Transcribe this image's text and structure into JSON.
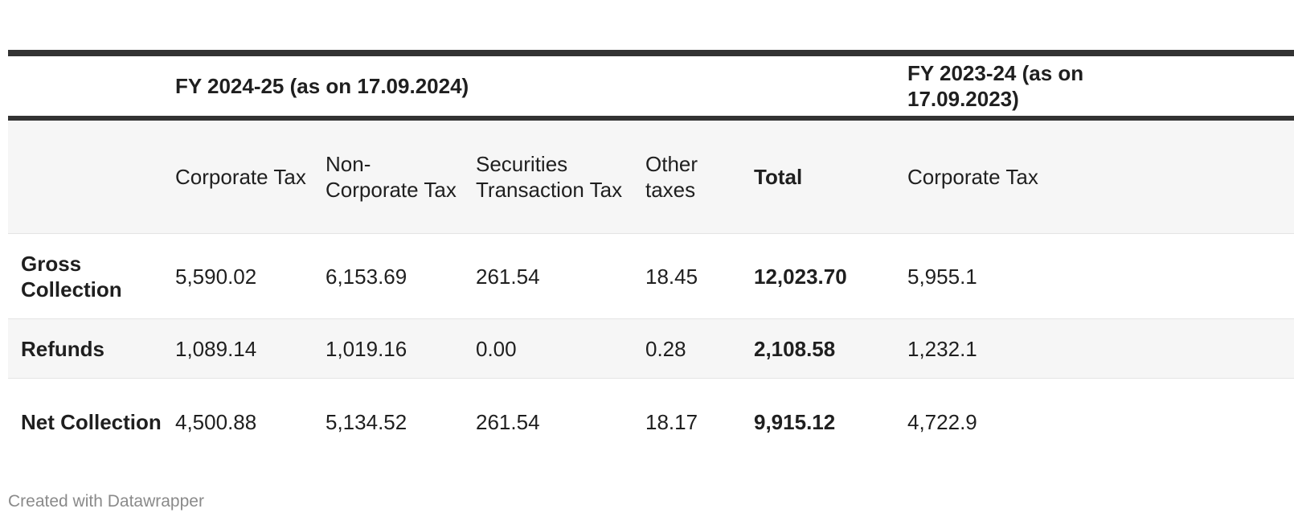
{
  "table": {
    "groups": [
      "FY 2024-25 (as on 17.09.2024)",
      "FY 2023-24 (as on 17.09.2023)"
    ],
    "headers": [
      "",
      "Corporate Tax",
      "Non-Corporate Tax",
      "Securities Transaction Tax",
      "Other taxes",
      "Total",
      "Corporate Tax"
    ],
    "rows": [
      {
        "label": "Gross Collection",
        "values": [
          "5,590.02",
          "6,153.69",
          "261.54",
          "18.45",
          "12,023.70",
          "5,955.1"
        ]
      },
      {
        "label": "Refunds",
        "values": [
          "1,089.14",
          "1,019.16",
          "0.00",
          "0.28",
          "2,108.58",
          "1,232.1"
        ]
      },
      {
        "label": "Net Collection",
        "values": [
          "4,500.88",
          "5,134.52",
          "261.54",
          "18.17",
          "9,915.12",
          "4,722.9"
        ]
      }
    ]
  },
  "footer": {
    "credit": "Created with Datawrapper"
  }
}
